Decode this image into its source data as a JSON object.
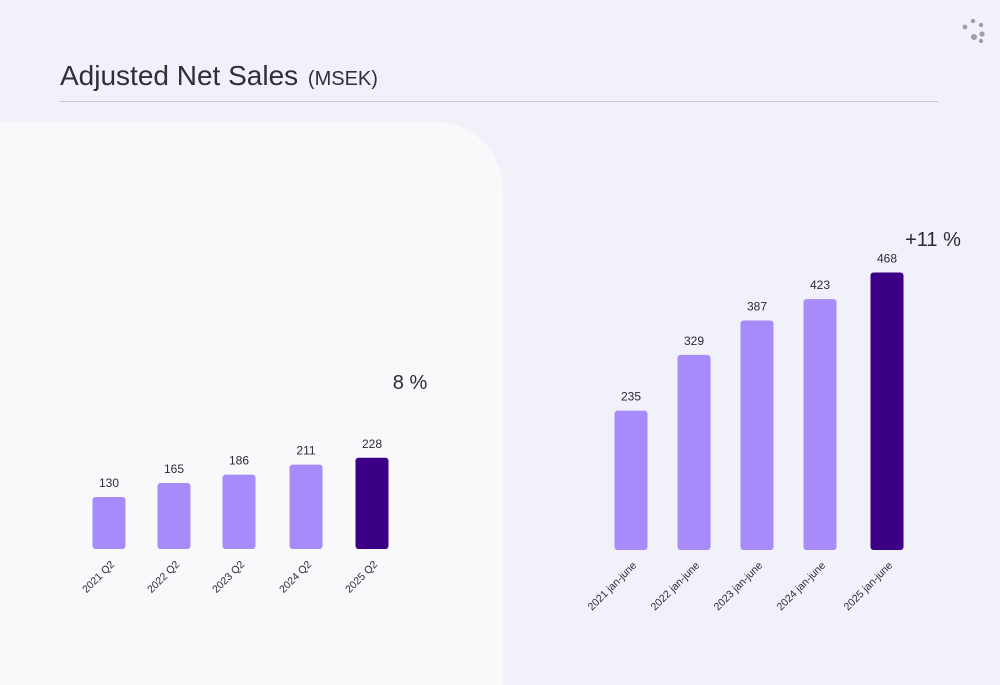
{
  "slide": {
    "title": "Adjusted Net Sales",
    "unit": "(MSEK)"
  },
  "logo": {
    "icon": "dots-logo-icon",
    "color": "#9e9eaa"
  },
  "colors": {
    "bar": "#a78bfa",
    "bar_highlight": "#3b0086",
    "text": "#2b2b33"
  },
  "chart_data": [
    {
      "type": "bar",
      "categories": [
        "2021 Q2",
        "2022 Q2",
        "2023 Q2",
        "2024 Q2",
        "2025 Q2"
      ],
      "values": [
        130,
        165,
        186,
        211,
        228
      ],
      "highlight_index": 4,
      "annotation": "8 %",
      "xlabel": "",
      "ylabel": "",
      "grid": false
    },
    {
      "type": "bar",
      "categories": [
        "2021 jan-june",
        "2022 jan-june",
        "2023 jan-june",
        "2024 jan-june",
        "2025 jan-june"
      ],
      "values": [
        235,
        329,
        387,
        423,
        468
      ],
      "highlight_index": 4,
      "annotation": "+11 %",
      "xlabel": "",
      "ylabel": "",
      "grid": false
    }
  ]
}
